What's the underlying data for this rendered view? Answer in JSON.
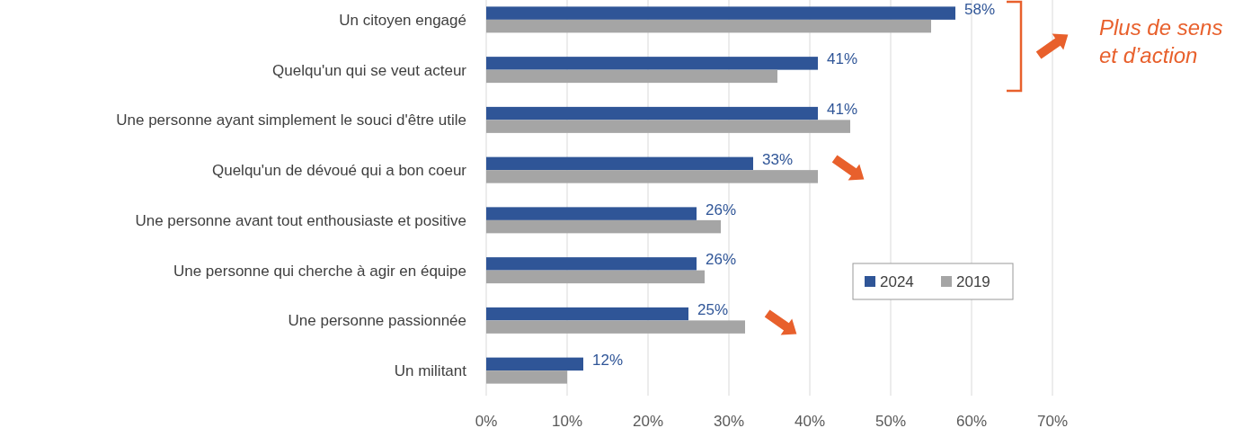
{
  "chart_data": {
    "type": "bar",
    "orientation": "horizontal",
    "categories": [
      "Un citoyen engagé",
      "Quelqu'un qui se veut acteur",
      "Une personne ayant simplement le souci d'être utile",
      "Quelqu'un de dévoué qui a bon coeur",
      "Une personne avant tout enthousiaste et positive",
      "Une personne qui cherche à agir en équipe",
      "Une personne passionnée",
      "Un militant"
    ],
    "series": [
      {
        "name": "2024",
        "color": "#2f5597",
        "values": [
          58,
          41,
          41,
          33,
          26,
          26,
          25,
          12
        ],
        "value_labels": [
          "58%",
          "41%",
          "41%",
          "33%",
          "26%",
          "26%",
          "25%",
          "12%"
        ]
      },
      {
        "name": "2019",
        "color": "#a5a5a5",
        "values": [
          55,
          36,
          45,
          41,
          29,
          27,
          32,
          10
        ]
      }
    ],
    "xlim": [
      0,
      70
    ],
    "xticks": [
      {
        "value": 0,
        "label": "0%"
      },
      {
        "value": 10,
        "label": "10%"
      },
      {
        "value": 20,
        "label": "20%"
      },
      {
        "value": 30,
        "label": "30%"
      },
      {
        "value": 40,
        "label": "40%"
      },
      {
        "value": 50,
        "label": "50%"
      },
      {
        "value": 60,
        "label": "60%"
      },
      {
        "value": 70,
        "label": "70%"
      }
    ],
    "grid": "x",
    "legend": "right",
    "annotations": [
      "Plus de sens et d’action"
    ]
  }
}
